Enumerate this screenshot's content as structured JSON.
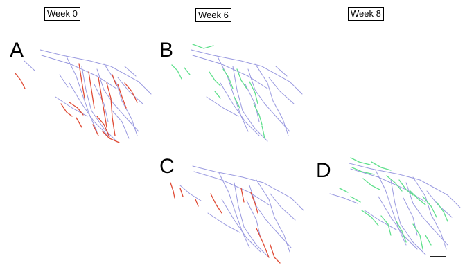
{
  "header": {
    "weeks": [
      "Week 0",
      "Week 6",
      "Week 8"
    ]
  },
  "panels": [
    {
      "letter": "A"
    },
    {
      "letter": "B"
    },
    {
      "letter": "C"
    },
    {
      "letter": "D"
    }
  ],
  "colors": {
    "base_trace": "#9a9ae0",
    "loss_trace": "#e04b35",
    "gain_trace": "#5fe08c",
    "scale_bar": "#222222"
  }
}
